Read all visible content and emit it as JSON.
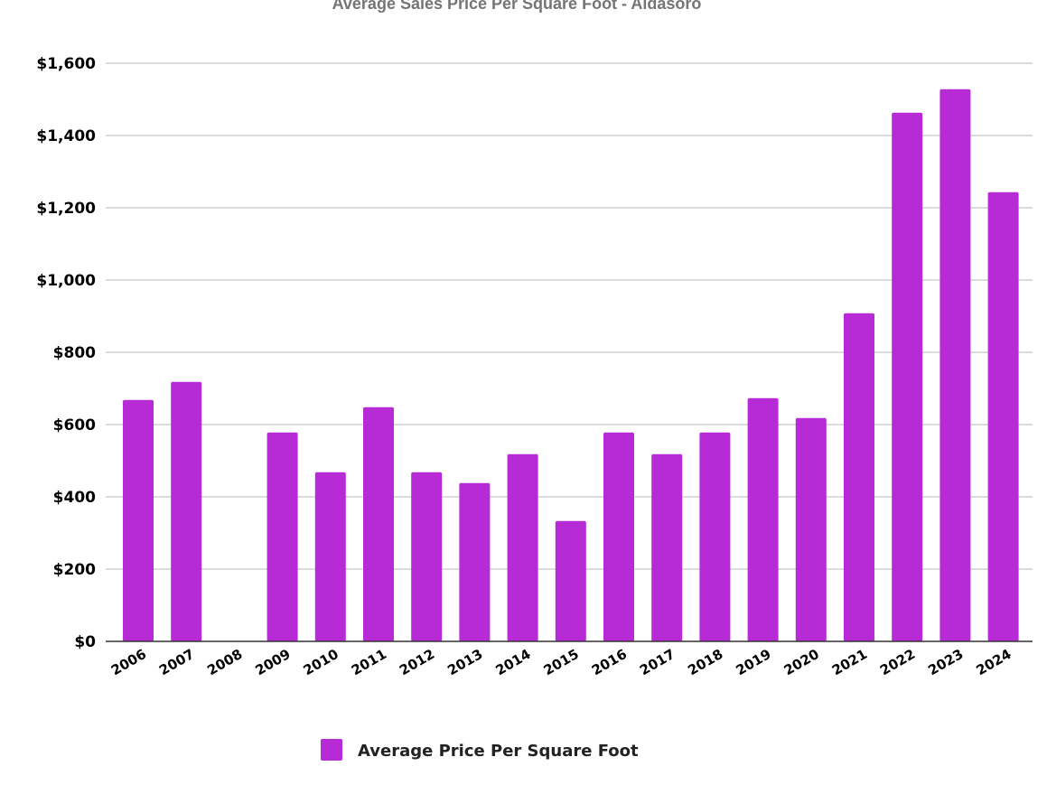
{
  "chart_data": {
    "type": "bar",
    "title": "Average Sales Price Per Square Foot - Aldasoro",
    "xlabel": "",
    "ylabel": "",
    "categories": [
      "2006",
      "2007",
      "2008",
      "2009",
      "2010",
      "2011",
      "2012",
      "2013",
      "2014",
      "2015",
      "2016",
      "2017",
      "2018",
      "2019",
      "2020",
      "2021",
      "2022",
      "2023",
      "2024"
    ],
    "series": [
      {
        "name": "Average Price Per Square Foot",
        "color": "#b62bd5",
        "values": [
          668,
          718,
          0,
          578,
          468,
          648,
          468,
          438,
          518,
          333,
          578,
          518,
          578,
          673,
          618,
          908,
          1463,
          1528,
          1243
        ]
      }
    ],
    "ylim": [
      0,
      1600
    ],
    "yticks": [
      "$0",
      "$200",
      "$400",
      "$600",
      "$800",
      "$1,000",
      "$1,200",
      "$1,400",
      "$1,600"
    ],
    "grid": true,
    "legend_position": "bottom"
  }
}
